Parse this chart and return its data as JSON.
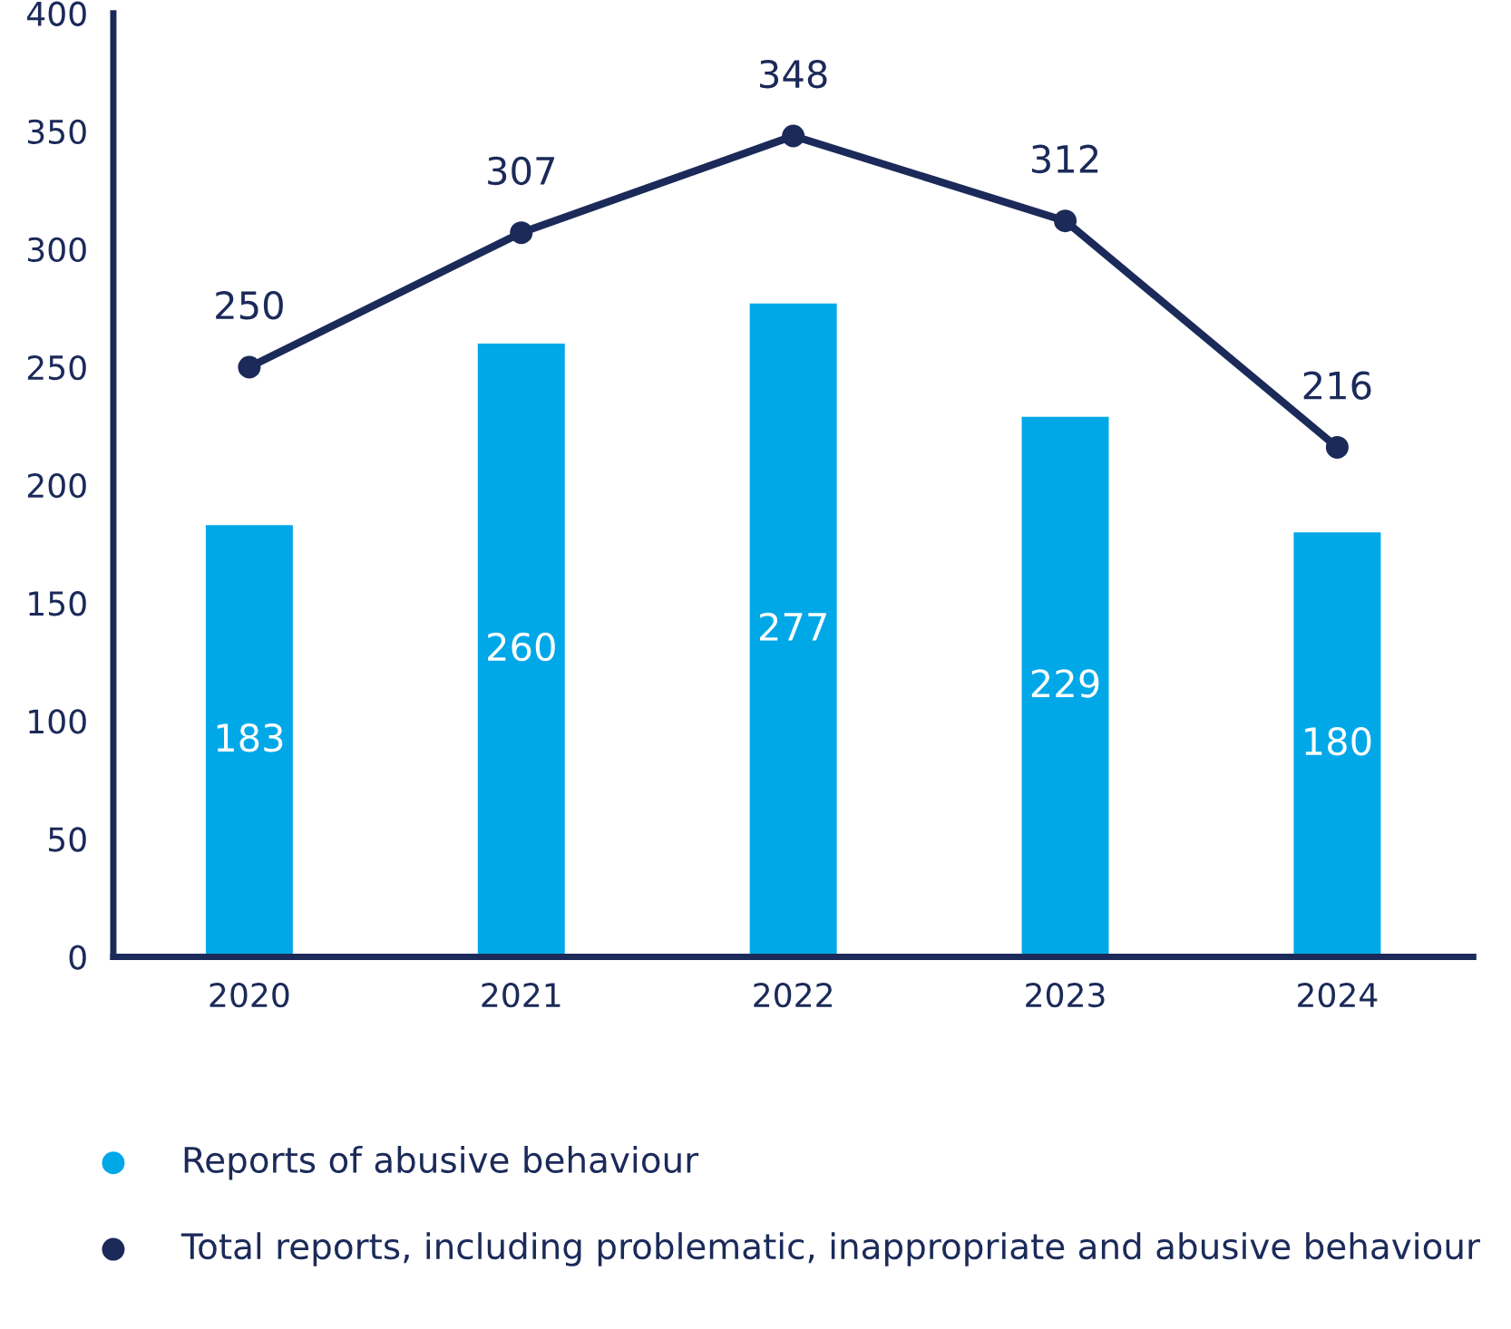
{
  "chart_data": {
    "type": "bar",
    "categories": [
      "2020",
      "2021",
      "2022",
      "2023",
      "2024"
    ],
    "series": [
      {
        "name": "Reports of abusive behaviour",
        "color": "#00a8e8",
        "values": [
          183,
          260,
          277,
          229,
          180
        ]
      },
      {
        "name": "Total reports, including problematic, inappropriate and abusive behaviour",
        "type": "line",
        "color": "#1b2a59",
        "values": [
          250,
          307,
          348,
          312,
          216
        ]
      }
    ],
    "ylim": [
      0,
      400
    ],
    "yticks": [
      0,
      50,
      100,
      150,
      200,
      250,
      300,
      350,
      400
    ],
    "data_labels": true,
    "grid": false,
    "legend": "bottom",
    "marker": "circle",
    "line_style": "solid"
  }
}
